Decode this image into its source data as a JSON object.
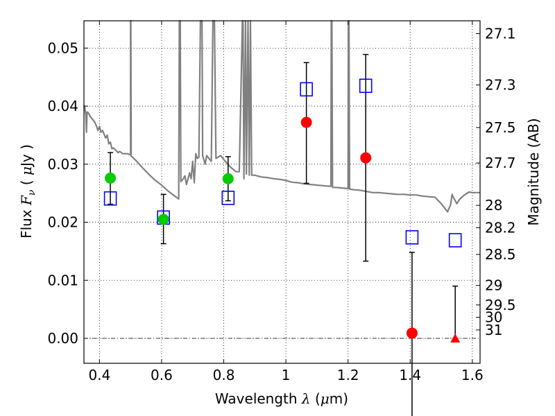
{
  "chart_data": {
    "type": "scatter",
    "xlabel": {
      "pre": "Wavelength  ",
      "sym": "λ",
      "post": " (",
      "mu": "μ",
      "unit": "m)"
    },
    "ylabel": {
      "pre": "Flux  ",
      "sym": "F",
      "sub": "ν",
      "post": "  ( ",
      "mu": "μ",
      "unit": "Jy )"
    },
    "y2label": "Magnitude (AB)",
    "xlim": [
      0.35,
      1.625
    ],
    "ylim": [
      -0.0043,
      0.0547
    ],
    "grid": true,
    "x_ticks": [
      {
        "v": 0.4,
        "t": "0.4"
      },
      {
        "v": 0.6,
        "t": "0.6"
      },
      {
        "v": 0.8,
        "t": "0.8"
      },
      {
        "v": 1.0,
        "t": "1"
      },
      {
        "v": 1.2,
        "t": "1.2"
      },
      {
        "v": 1.4,
        "t": "1.4"
      },
      {
        "v": 1.6,
        "t": "1.6"
      }
    ],
    "y_ticks": [
      {
        "v": 0.0,
        "t": "0.00"
      },
      {
        "v": 0.01,
        "t": "0.01"
      },
      {
        "v": 0.02,
        "t": "0.02"
      },
      {
        "v": 0.03,
        "t": "0.03"
      },
      {
        "v": 0.04,
        "t": "0.04"
      },
      {
        "v": 0.05,
        "t": "0.05"
      }
    ],
    "mag_ticks": [
      {
        "v": 27.1,
        "t": "27.1"
      },
      {
        "v": 27.3,
        "t": "27.3"
      },
      {
        "v": 27.5,
        "t": "27.5"
      },
      {
        "v": 27.7,
        "t": "27.7"
      },
      {
        "v": 28.0,
        "t": "28"
      },
      {
        "v": 28.2,
        "t": "28.2"
      },
      {
        "v": 28.5,
        "t": "28.5"
      },
      {
        "v": 29.0,
        "t": "29"
      },
      {
        "v": 29.5,
        "t": "29.5"
      },
      {
        "v": 30.0,
        "t": "30"
      },
      {
        "v": 31.0,
        "t": "31"
      }
    ],
    "model_sed": {
      "color": "#808080",
      "points": [
        [
          0.35,
          0.0402
        ],
        [
          0.353,
          0.0398
        ],
        [
          0.356,
          0.0385
        ],
        [
          0.358,
          0.0355
        ],
        [
          0.36,
          0.039
        ],
        [
          0.365,
          0.0388
        ],
        [
          0.37,
          0.0382
        ],
        [
          0.38,
          0.0376
        ],
        [
          0.385,
          0.0372
        ],
        [
          0.39,
          0.0366
        ],
        [
          0.395,
          0.0358
        ],
        [
          0.4,
          0.0365
        ],
        [
          0.405,
          0.0355
        ],
        [
          0.41,
          0.0358
        ],
        [
          0.42,
          0.0345
        ],
        [
          0.425,
          0.035
        ],
        [
          0.43,
          0.0335
        ],
        [
          0.435,
          0.0338
        ],
        [
          0.44,
          0.0327
        ],
        [
          0.445,
          0.0328
        ],
        [
          0.455,
          0.0323
        ],
        [
          0.46,
          0.032
        ],
        [
          0.465,
          0.0322
        ],
        [
          0.475,
          0.0318
        ],
        [
          0.49,
          0.0318
        ],
        [
          0.5,
          0.0316
        ],
        [
          0.5,
          0.0547
        ],
        [
          0.501,
          0.0547
        ],
        [
          0.502,
          0.0314
        ],
        [
          0.52,
          0.0305
        ],
        [
          0.54,
          0.0293
        ],
        [
          0.56,
          0.0282
        ],
        [
          0.58,
          0.0272
        ],
        [
          0.6,
          0.0264
        ],
        [
          0.62,
          0.0254
        ],
        [
          0.64,
          0.0246
        ],
        [
          0.655,
          0.024
        ],
        [
          0.657,
          0.0547
        ],
        [
          0.66,
          0.0547
        ],
        [
          0.662,
          0.027
        ],
        [
          0.67,
          0.0275
        ],
        [
          0.675,
          0.028
        ],
        [
          0.68,
          0.0265
        ],
        [
          0.69,
          0.0285
        ],
        [
          0.695,
          0.0275
        ],
        [
          0.7,
          0.0305
        ],
        [
          0.705,
          0.0268
        ],
        [
          0.71,
          0.0318
        ],
        [
          0.715,
          0.031
        ],
        [
          0.72,
          0.0312
        ],
        [
          0.725,
          0.0547
        ],
        [
          0.73,
          0.0547
        ],
        [
          0.732,
          0.0315
        ],
        [
          0.74,
          0.03
        ],
        [
          0.745,
          0.0315
        ],
        [
          0.755,
          0.0308
        ],
        [
          0.76,
          0.0305
        ],
        [
          0.765,
          0.0547
        ],
        [
          0.77,
          0.0547
        ],
        [
          0.775,
          0.031
        ],
        [
          0.79,
          0.0315
        ],
        [
          0.8,
          0.0308
        ],
        [
          0.81,
          0.0302
        ],
        [
          0.82,
          0.0296
        ],
        [
          0.83,
          0.0291
        ],
        [
          0.84,
          0.0287
        ],
        [
          0.85,
          0.0287
        ],
        [
          0.86,
          0.0547
        ],
        [
          0.862,
          0.0547
        ],
        [
          0.865,
          0.0275
        ],
        [
          0.87,
          0.0547
        ],
        [
          0.873,
          0.0283
        ],
        [
          0.878,
          0.0547
        ],
        [
          0.882,
          0.0281
        ],
        [
          0.886,
          0.0547
        ],
        [
          0.89,
          0.0281
        ],
        [
          0.9,
          0.0281
        ],
        [
          0.92,
          0.0278
        ],
        [
          0.94,
          0.0277
        ],
        [
          0.96,
          0.0275
        ],
        [
          0.98,
          0.0274
        ],
        [
          1.0,
          0.0272
        ],
        [
          1.02,
          0.0269
        ],
        [
          1.04,
          0.0268
        ],
        [
          1.06,
          0.0266
        ],
        [
          1.08,
          0.0265
        ],
        [
          1.1,
          0.0264
        ],
        [
          1.12,
          0.0263
        ],
        [
          1.14,
          0.0262
        ],
        [
          1.145,
          0.0262
        ],
        [
          1.146,
          0.0547
        ],
        [
          1.148,
          0.0547
        ],
        [
          1.15,
          0.026
        ],
        [
          1.16,
          0.026
        ],
        [
          1.18,
          0.0259
        ],
        [
          1.2,
          0.0258
        ],
        [
          1.201,
          0.0547
        ],
        [
          1.203,
          0.0547
        ],
        [
          1.205,
          0.0257
        ],
        [
          1.22,
          0.0256
        ],
        [
          1.24,
          0.0255
        ],
        [
          1.26,
          0.0253
        ],
        [
          1.28,
          0.0251
        ],
        [
          1.3,
          0.0251
        ],
        [
          1.32,
          0.025
        ],
        [
          1.34,
          0.0249
        ],
        [
          1.36,
          0.0248
        ],
        [
          1.38,
          0.0248
        ],
        [
          1.4,
          0.0247
        ],
        [
          1.42,
          0.0247
        ],
        [
          1.44,
          0.0245
        ],
        [
          1.46,
          0.0244
        ],
        [
          1.48,
          0.0243
        ],
        [
          1.5,
          0.0232
        ],
        [
          1.51,
          0.0225
        ],
        [
          1.52,
          0.0218
        ],
        [
          1.53,
          0.023
        ],
        [
          1.535,
          0.0248
        ],
        [
          1.54,
          0.0242
        ],
        [
          1.55,
          0.0232
        ],
        [
          1.56,
          0.024
        ],
        [
          1.57,
          0.0245
        ],
        [
          1.58,
          0.0249
        ],
        [
          1.59,
          0.0252
        ],
        [
          1.6,
          0.0251
        ],
        [
          1.625,
          0.0251
        ]
      ]
    },
    "green_points": {
      "color": "#00cc00",
      "points": [
        {
          "x": 0.435,
          "y": 0.0276,
          "err_lo": 0.0045,
          "err_hi": 0.0044
        },
        {
          "x": 0.606,
          "y": 0.0205,
          "err_lo": 0.0042,
          "err_hi": 0.0043
        },
        {
          "x": 0.814,
          "y": 0.0275,
          "err_lo": 0.0038,
          "err_hi": 0.0038
        }
      ]
    },
    "red_points": {
      "color": "#ff0000",
      "points": [
        {
          "x": 1.066,
          "y": 0.0372,
          "err_lo": 0.0105,
          "err_hi": 0.0103
        },
        {
          "x": 1.257,
          "y": 0.0311,
          "err_lo": 0.0178,
          "err_hi": 0.0178
        },
        {
          "x": 1.406,
          "y": 0.0009,
          "err_lo": 0.015,
          "err_hi": 0.0139
        }
      ]
    },
    "red_upper_limit": {
      "color": "#ff0000",
      "marker": "triangle",
      "x": 1.545,
      "y": 0.0,
      "err_hi": 0.009
    },
    "blue_model_squares": {
      "color": "#0000ff",
      "points": [
        [
          0.435,
          0.0241
        ],
        [
          0.606,
          0.0208
        ],
        [
          0.814,
          0.0242
        ],
        [
          1.066,
          0.0429
        ],
        [
          1.257,
          0.0435
        ],
        [
          1.406,
          0.0174
        ],
        [
          1.545,
          0.0169
        ]
      ]
    }
  }
}
